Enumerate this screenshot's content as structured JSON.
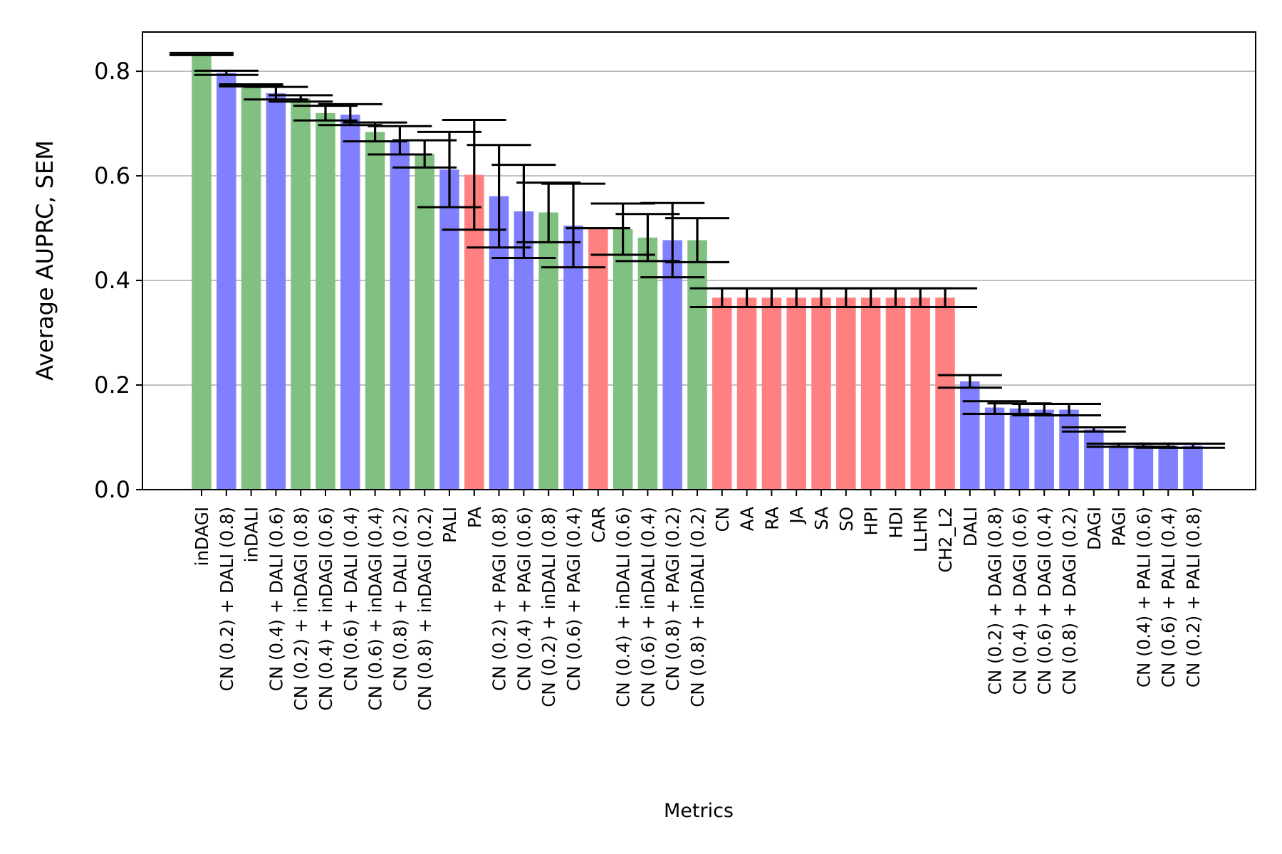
{
  "chart_data": {
    "type": "bar",
    "xlabel": "Metrics",
    "ylabel": "Average AUPRC, SEM",
    "ylim": [
      0,
      0.875
    ],
    "yticks": [
      "0.0",
      "0.2",
      "0.4",
      "0.6",
      "0.8"
    ],
    "ytick_values": [
      0,
      0.2,
      0.4,
      0.6,
      0.8
    ],
    "grid": "horizontal",
    "colors": {
      "green": "#80c080",
      "blue": "#8080ff",
      "red": "#ff8080"
    },
    "categories": [
      "inDAGI",
      "CN (0.2) + DALI (0.8)",
      "inDALI",
      "CN (0.4) + DALI (0.6)",
      "CN (0.2) + inDAGI (0.8)",
      "CN (0.4) + inDAGI (0.6)",
      "CN (0.6) + DALI (0.4)",
      "CN (0.6) + inDAGI (0.4)",
      "CN (0.8) + DALI (0.2)",
      "CN (0.8) + inDAGI (0.2)",
      "PALI",
      "PA",
      "CN (0.2) + PAGI (0.8)",
      "CN (0.4) + PAGI (0.6)",
      "CN (0.2) + inDALI (0.8)",
      "CN (0.6) + PAGI (0.4)",
      "CAR",
      "CN (0.4) + inDALI (0.6)",
      "CN (0.6) + inDALI (0.4)",
      "CN (0.8) + PAGI (0.2)",
      "CN (0.8) + inDALI (0.2)",
      "CN",
      "AA",
      "RA",
      "JA",
      "SA",
      "SO",
      "HPI",
      "HDI",
      "LLHN",
      "CH2_L2",
      "DALI",
      "CN (0.2) + DAGI (0.8)",
      "CN (0.4) + DAGI (0.6)",
      "CN (0.6) + DAGI (0.4)",
      "CN (0.8) + DAGI (0.2)",
      "DAGI",
      "PAGI",
      "CN (0.4) + PALI (0.6)",
      "CN (0.6) + PALI (0.4)",
      "CN (0.2) + PALI (0.8)"
    ],
    "values": [
      0.833,
      0.797,
      0.773,
      0.758,
      0.748,
      0.72,
      0.717,
      0.684,
      0.668,
      0.642,
      0.612,
      0.602,
      0.561,
      0.532,
      0.53,
      0.505,
      0.5,
      0.498,
      0.482,
      0.477,
      0.477,
      0.367,
      0.367,
      0.367,
      0.367,
      0.367,
      0.367,
      0.367,
      0.367,
      0.367,
      0.367,
      0.207,
      0.157,
      0.155,
      0.153,
      0.153,
      0.115,
      0.085,
      0.085,
      0.084,
      0.084
    ],
    "sem": [
      0.002,
      0.004,
      0.002,
      0.012,
      0.006,
      0.014,
      0.02,
      0.018,
      0.027,
      0.026,
      0.072,
      0.105,
      0.098,
      0.089,
      0.057,
      0.08,
      0.0,
      0.049,
      0.045,
      0.071,
      0.042,
      0.018,
      0.018,
      0.018,
      0.018,
      0.018,
      0.018,
      0.018,
      0.018,
      0.018,
      0.018,
      0.012,
      0.012,
      0.01,
      0.011,
      0.011,
      0.004,
      0.003,
      0.003,
      0.004,
      0.004
    ],
    "bar_colors": [
      "green",
      "blue",
      "green",
      "blue",
      "green",
      "green",
      "blue",
      "green",
      "blue",
      "green",
      "blue",
      "red",
      "blue",
      "blue",
      "green",
      "blue",
      "red",
      "green",
      "green",
      "blue",
      "green",
      "red",
      "red",
      "red",
      "red",
      "red",
      "red",
      "red",
      "red",
      "red",
      "red",
      "blue",
      "blue",
      "blue",
      "blue",
      "blue",
      "blue",
      "blue",
      "blue",
      "blue",
      "blue"
    ]
  }
}
